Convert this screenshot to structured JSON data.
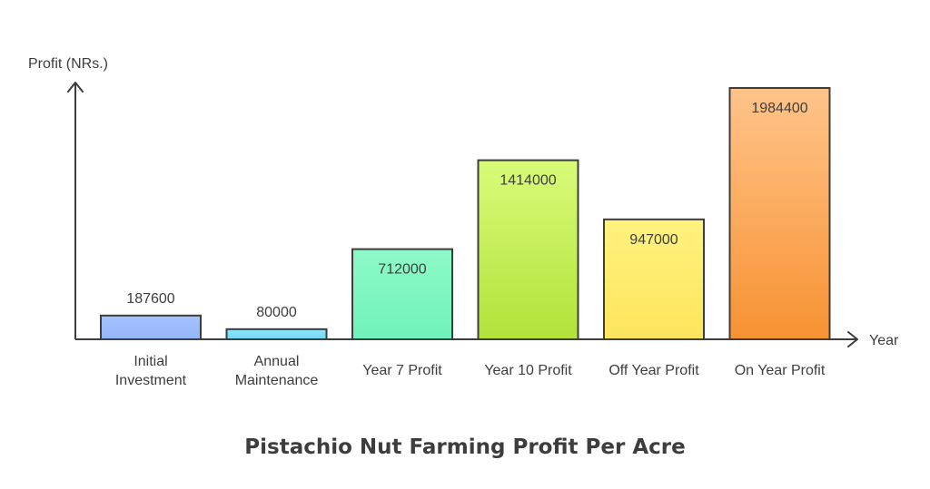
{
  "chart_data": {
    "type": "bar",
    "title": "Pistachio Nut Farming Profit Per Acre",
    "xlabel": "Year",
    "ylabel": "Profit (NRs.)",
    "categories": [
      [
        "Initial",
        "Investment"
      ],
      [
        "Annual",
        "Maintenance"
      ],
      [
        "Year 7 Profit"
      ],
      [
        "Year 10 Profit"
      ],
      [
        "Off Year Profit"
      ],
      [
        "On Year Profit"
      ]
    ],
    "values": [
      187600,
      80000,
      712000,
      1414000,
      947000,
      1984400
    ],
    "value_labels": [
      "187600",
      "80000",
      "712000",
      "1414000",
      "947000",
      "1984400"
    ],
    "ylim": [
      0,
      1984400
    ],
    "grid": false,
    "colors": [
      {
        "top": "#a6c2ff",
        "bottom": "#94b5f7"
      },
      {
        "top": "#8ee3fb",
        "bottom": "#72d9f5"
      },
      {
        "top": "#8efac7",
        "bottom": "#70f2bb"
      },
      {
        "top": "#d9fb79",
        "bottom": "#b2e23a"
      },
      {
        "top": "#fff27e",
        "bottom": "#fde55c"
      },
      {
        "top": "#ffc48a",
        "bottom": "#f79232"
      }
    ]
  }
}
